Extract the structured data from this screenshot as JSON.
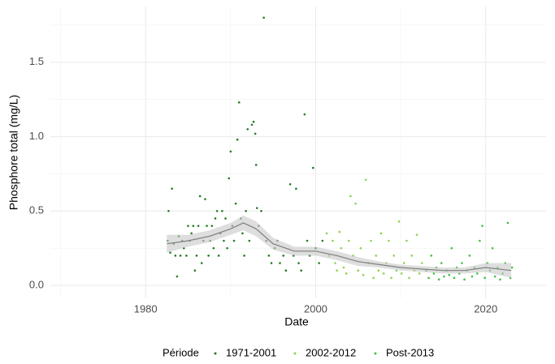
{
  "chart_data": {
    "type": "scatter",
    "x_label": "Date",
    "y_label": "Phosphore total (mg/L)",
    "xlim": [
      1968.8,
      2027.1
    ],
    "ylim": [
      -0.087,
      1.875
    ],
    "xticks": [
      1980,
      2000,
      2020
    ],
    "yticks": [
      {
        "value": 0,
        "label": "0.0"
      },
      0.5,
      {
        "value": 1,
        "label": "1.0"
      },
      1.5
    ],
    "minor_xticks": [
      1970,
      1990,
      2010
    ],
    "minor_yticks": [
      0.25,
      0.75,
      1.25,
      1.75
    ],
    "grid": true,
    "legend_title": "Période",
    "legend_position": "bottom",
    "series": [
      {
        "name": "1971-2001",
        "color": "#237a23",
        "x": [
          1982.6,
          1982.7,
          1982.9,
          1983.1,
          1983.3,
          1983.5,
          1983.7,
          1983.9,
          1984.1,
          1984.3,
          1984.5,
          1984.8,
          1985.0,
          1985.2,
          1985.4,
          1985.6,
          1985.8,
          1986.0,
          1986.2,
          1986.4,
          1986.6,
          1986.8,
          1987.0,
          1987.2,
          1987.4,
          1987.6,
          1987.8,
          1988.0,
          1988.2,
          1988.4,
          1988.6,
          1988.8,
          1989.0,
          1989.2,
          1989.4,
          1989.6,
          1989.8,
          1990.0,
          1990.2,
          1990.4,
          1990.6,
          1990.8,
          1991.0,
          1991.2,
          1991.4,
          1991.6,
          1991.8,
          1992.0,
          1992.2,
          1992.5,
          1992.7,
          1992.9,
          1993.0,
          1993.1,
          1993.3,
          1993.6,
          1993.9,
          1994.2,
          1994.5,
          1994.8,
          1995.2,
          1995.5,
          1995.8,
          1996.2,
          1996.5,
          1997.0,
          1997.4,
          1997.7,
          1998.0,
          1998.3,
          1998.7,
          1999.0,
          1999.3,
          1999.7,
          2000.0,
          2000.4,
          2000.8
        ],
        "values": [
          0.3,
          0.5,
          0.22,
          0.65,
          0.28,
          0.2,
          0.06,
          0.33,
          0.2,
          0.3,
          0.25,
          0.2,
          0.4,
          0.3,
          0.35,
          0.4,
          0.1,
          0.2,
          0.4,
          0.6,
          0.15,
          0.3,
          0.58,
          0.4,
          0.2,
          0.3,
          0.4,
          0.25,
          0.45,
          0.5,
          0.2,
          0.35,
          0.5,
          0.3,
          0.45,
          0.25,
          0.72,
          0.9,
          0.4,
          0.3,
          0.55,
          0.98,
          1.23,
          0.45,
          0.35,
          0.2,
          0.5,
          1.05,
          0.3,
          1.08,
          1.1,
          1.02,
          0.81,
          0.52,
          0.4,
          0.5,
          1.8,
          0.3,
          0.2,
          0.15,
          0.25,
          0.3,
          0.15,
          0.2,
          0.1,
          0.68,
          0.2,
          0.65,
          0.15,
          0.1,
          1.15,
          0.3,
          0.2,
          0.79,
          0.25,
          0.15,
          0.3
        ]
      },
      {
        "name": "2002-2012",
        "color": "#8fd14f",
        "x": [
          2001.3,
          2001.6,
          2002.0,
          2002.3,
          2002.5,
          2002.8,
          2003.0,
          2003.3,
          2003.6,
          2003.9,
          2004.1,
          2004.4,
          2004.7,
          2005.0,
          2005.3,
          2005.6,
          2005.9,
          2006.2,
          2006.5,
          2006.8,
          2007.1,
          2007.4,
          2007.7,
          2008.0,
          2008.3,
          2008.6,
          2008.9,
          2009.2,
          2009.5,
          2009.8,
          2010.1,
          2010.4,
          2010.7,
          2011.0,
          2011.3,
          2011.6,
          2011.9,
          2012.2,
          2012.5
        ],
        "values": [
          0.35,
          0.2,
          0.3,
          0.15,
          0.1,
          0.36,
          0.25,
          0.12,
          0.08,
          0.3,
          0.6,
          0.2,
          0.55,
          0.1,
          0.25,
          0.07,
          0.71,
          0.15,
          0.3,
          0.05,
          0.2,
          0.1,
          0.35,
          0.08,
          0.15,
          0.3,
          0.05,
          0.2,
          0.1,
          0.43,
          0.08,
          0.15,
          0.3,
          0.05,
          0.2,
          0.1,
          0.34,
          0.08,
          0.15
        ]
      },
      {
        "name": "Post-2013",
        "color": "#3cc33c",
        "x": [
          2013.0,
          2013.3,
          2013.6,
          2013.9,
          2014.2,
          2014.5,
          2014.8,
          2015.1,
          2015.4,
          2015.7,
          2016.0,
          2016.3,
          2016.6,
          2016.9,
          2017.2,
          2017.5,
          2017.8,
          2018.1,
          2018.4,
          2018.7,
          2019.0,
          2019.3,
          2019.6,
          2019.9,
          2020.2,
          2020.5,
          2020.8,
          2021.1,
          2021.4,
          2021.7,
          2022.0,
          2022.3,
          2022.6,
          2022.9,
          2023.1
        ],
        "values": [
          0.1,
          0.05,
          0.2,
          0.08,
          0.12,
          0.04,
          0.15,
          0.06,
          0.1,
          0.07,
          0.25,
          0.05,
          0.12,
          0.08,
          0.15,
          0.04,
          0.1,
          0.2,
          0.06,
          0.12,
          0.08,
          0.3,
          0.4,
          0.05,
          0.15,
          0.1,
          0.25,
          0.06,
          0.12,
          0.04,
          0.08,
          0.15,
          0.42,
          0.05,
          0.12
        ]
      }
    ],
    "smooth": {
      "color": "#7f7f7f",
      "band_color": "#c8c8c8",
      "x": [
        1982.5,
        1985,
        1987.5,
        1990,
        1991.5,
        1993,
        1995,
        1997.5,
        2000,
        2002.5,
        2005,
        2007.5,
        2010,
        2012.5,
        2015,
        2017.5,
        2020,
        2023
      ],
      "y": [
        0.28,
        0.3,
        0.33,
        0.38,
        0.42,
        0.38,
        0.28,
        0.23,
        0.23,
        0.2,
        0.16,
        0.14,
        0.12,
        0.11,
        0.1,
        0.1,
        0.12,
        0.1
      ],
      "lower": [
        0.22,
        0.26,
        0.29,
        0.34,
        0.37,
        0.33,
        0.24,
        0.2,
        0.2,
        0.17,
        0.13,
        0.12,
        0.1,
        0.09,
        0.08,
        0.08,
        0.09,
        0.05
      ],
      "upper": [
        0.34,
        0.34,
        0.37,
        0.42,
        0.47,
        0.43,
        0.32,
        0.26,
        0.26,
        0.23,
        0.19,
        0.16,
        0.14,
        0.13,
        0.12,
        0.12,
        0.15,
        0.15
      ]
    }
  }
}
